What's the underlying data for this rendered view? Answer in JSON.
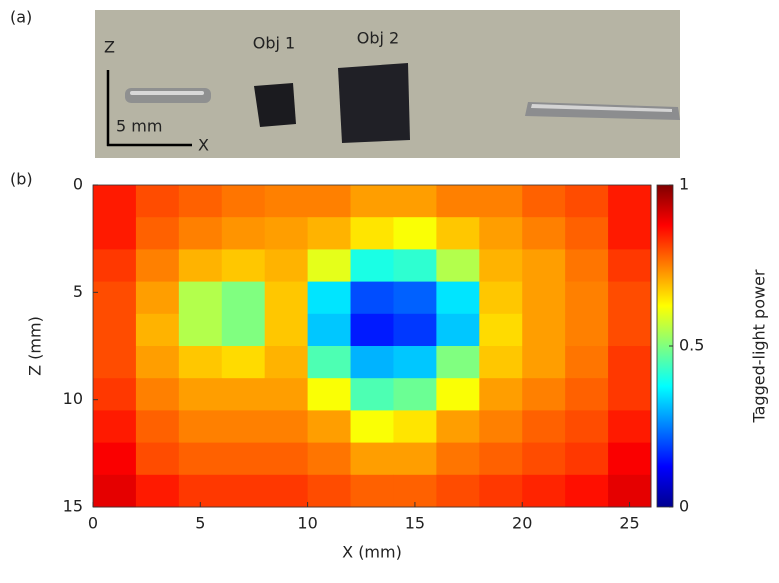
{
  "panel_a": {
    "label": "(a)",
    "z_axis": "Z",
    "x_axis": "X",
    "scale": "5 mm",
    "objects": [
      "Obj 1",
      "Obj 2"
    ]
  },
  "chart_data": {
    "type": "heatmap",
    "panel_label": "(b)",
    "x_label": "X (mm)",
    "y_label": "Z (mm)",
    "colorbar_label": "Tagged-light power",
    "colormap": "jet",
    "y_inverted": true,
    "xlim": [
      0,
      26
    ],
    "ylim": [
      0,
      15
    ],
    "xticks": [
      0,
      5,
      10,
      15,
      20,
      25
    ],
    "yticks": [
      0,
      5,
      10,
      15
    ],
    "clim": [
      0,
      1
    ],
    "cticks": [
      0,
      0.5,
      1
    ],
    "values": [
      [
        0.85,
        0.8,
        0.78,
        0.76,
        0.75,
        0.75,
        0.72,
        0.72,
        0.75,
        0.75,
        0.78,
        0.8,
        0.85
      ],
      [
        0.85,
        0.78,
        0.75,
        0.73,
        0.72,
        0.7,
        0.65,
        0.62,
        0.68,
        0.72,
        0.75,
        0.78,
        0.85
      ],
      [
        0.82,
        0.75,
        0.7,
        0.68,
        0.7,
        0.6,
        0.4,
        0.42,
        0.55,
        0.7,
        0.72,
        0.76,
        0.82
      ],
      [
        0.8,
        0.72,
        0.55,
        0.5,
        0.68,
        0.35,
        0.2,
        0.22,
        0.35,
        0.68,
        0.72,
        0.75,
        0.8
      ],
      [
        0.8,
        0.7,
        0.55,
        0.5,
        0.68,
        0.32,
        0.15,
        0.18,
        0.32,
        0.66,
        0.72,
        0.75,
        0.8
      ],
      [
        0.8,
        0.72,
        0.68,
        0.66,
        0.7,
        0.45,
        0.3,
        0.32,
        0.5,
        0.68,
        0.72,
        0.76,
        0.82
      ],
      [
        0.82,
        0.75,
        0.72,
        0.72,
        0.72,
        0.62,
        0.45,
        0.48,
        0.62,
        0.72,
        0.75,
        0.78,
        0.82
      ],
      [
        0.85,
        0.78,
        0.75,
        0.75,
        0.75,
        0.72,
        0.62,
        0.65,
        0.72,
        0.75,
        0.78,
        0.8,
        0.85
      ],
      [
        0.88,
        0.8,
        0.78,
        0.78,
        0.78,
        0.76,
        0.72,
        0.72,
        0.76,
        0.78,
        0.8,
        0.82,
        0.88
      ],
      [
        0.9,
        0.85,
        0.82,
        0.82,
        0.82,
        0.8,
        0.78,
        0.78,
        0.8,
        0.82,
        0.84,
        0.86,
        0.9
      ]
    ]
  }
}
